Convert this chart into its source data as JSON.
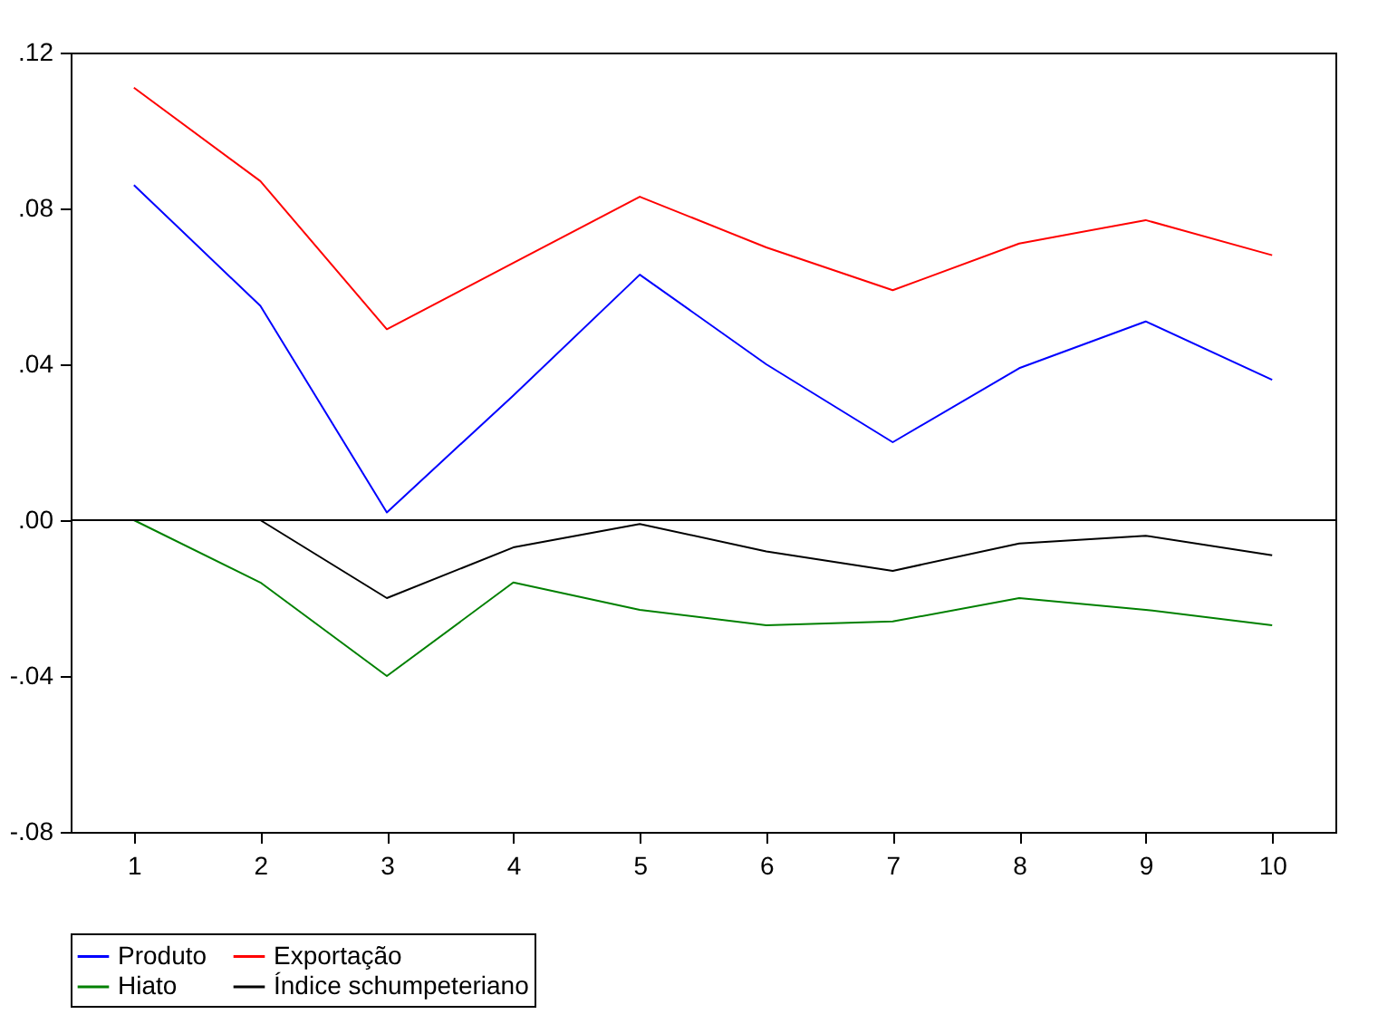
{
  "chart_data": {
    "type": "line",
    "categories": [
      "1",
      "2",
      "3",
      "4",
      "5",
      "6",
      "7",
      "8",
      "9",
      "10"
    ],
    "series": [
      {
        "name": "Produto",
        "color": "#0000ff",
        "values": [
          0.086,
          0.055,
          0.002,
          0.032,
          0.063,
          0.04,
          0.02,
          0.039,
          0.051,
          0.036
        ]
      },
      {
        "name": "Exportação",
        "color": "#ff0000",
        "values": [
          0.111,
          0.087,
          0.049,
          0.066,
          0.083,
          0.07,
          0.059,
          0.071,
          0.077,
          0.068
        ]
      },
      {
        "name": "Hiato",
        "color": "#008000",
        "values": [
          0.0,
          -0.016,
          -0.04,
          -0.016,
          -0.023,
          -0.027,
          -0.026,
          -0.02,
          -0.023,
          -0.027
        ]
      },
      {
        "name": "Índice schumpeteriano",
        "color": "#000000",
        "values": [
          0.0,
          0.0,
          -0.02,
          -0.007,
          -0.001,
          -0.008,
          -0.013,
          -0.006,
          -0.004,
          -0.009
        ]
      }
    ],
    "ylim": [
      -0.08,
      0.12
    ],
    "yticks": [
      {
        "value": -0.08,
        "label": "-.08"
      },
      {
        "value": -0.04,
        "label": "-.04"
      },
      {
        "value": 0,
        "label": ".00"
      },
      {
        "value": 0.04,
        "label": ".04"
      },
      {
        "value": 0.08,
        "label": ".08"
      },
      {
        "value": 0.12,
        "label": ".12"
      }
    ],
    "ref_lines": [
      {
        "axis": "y",
        "value": 0,
        "color": "#000000"
      }
    ],
    "legend": "bottom",
    "grid": false,
    "marker": "none",
    "line_style": "solid"
  }
}
